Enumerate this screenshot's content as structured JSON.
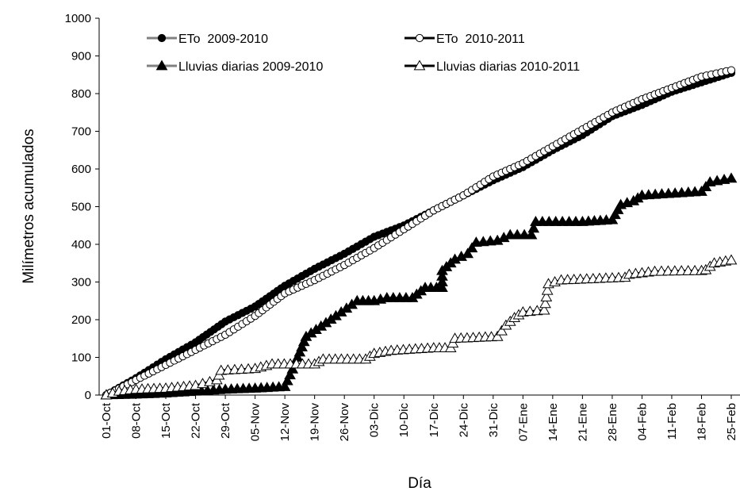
{
  "chart_data": {
    "type": "line",
    "title": "",
    "xlabel": "Día",
    "ylabel": "Milímetros acumulados",
    "ylim": [
      0,
      1000
    ],
    "yticks": [
      0,
      100,
      200,
      300,
      400,
      500,
      600,
      700,
      800,
      900,
      1000
    ],
    "xlim": [
      "01-Oct",
      "25-Feb"
    ],
    "xtick_labels": [
      "01-Oct",
      "08-Oct",
      "15-Oct",
      "22-Oct",
      "29-Oct",
      "05-Nov",
      "12-Nov",
      "19-Nov",
      "26-Nov",
      "03-Dic",
      "10-Dic",
      "17-Dic",
      "24-Dic",
      "31-Dic",
      "07-Ene",
      "14-Ene",
      "21-Ene",
      "28-Ene",
      "04-Feb",
      "11-Feb",
      "18-Feb",
      "25-Feb"
    ],
    "grid": false,
    "legend_position": "top-left",
    "series": [
      {
        "name": "ETo  2009-2010",
        "marker": "filled-circle",
        "line_color": "#808080",
        "marker_color": "#000000",
        "points": [
          [
            "01-Oct",
            0
          ],
          [
            "08-Oct",
            45
          ],
          [
            "15-Oct",
            95
          ],
          [
            "22-Oct",
            140
          ],
          [
            "29-Oct",
            195
          ],
          [
            "05-Nov",
            235
          ],
          [
            "12-Nov",
            290
          ],
          [
            "19-Nov",
            335
          ],
          [
            "26-Nov",
            375
          ],
          [
            "03-Dic",
            420
          ],
          [
            "10-Dic",
            450
          ],
          [
            "17-Dic",
            490
          ],
          [
            "24-Dic",
            530
          ],
          [
            "31-Dic",
            570
          ],
          [
            "07-Ene",
            605
          ],
          [
            "14-Ene",
            650
          ],
          [
            "21-Ene",
            690
          ],
          [
            "28-Ene",
            740
          ],
          [
            "04-Feb",
            770
          ],
          [
            "11-Feb",
            805
          ],
          [
            "18-Feb",
            830
          ],
          [
            "25-Feb",
            855
          ]
        ]
      },
      {
        "name": "ETo  2010-2011",
        "marker": "open-circle",
        "line_color": "#000000",
        "marker_color": "#ffffff",
        "points": [
          [
            "01-Oct",
            0
          ],
          [
            "08-Oct",
            40
          ],
          [
            "15-Oct",
            80
          ],
          [
            "22-Oct",
            120
          ],
          [
            "29-Oct",
            160
          ],
          [
            "05-Nov",
            210
          ],
          [
            "12-Nov",
            270
          ],
          [
            "19-Nov",
            305
          ],
          [
            "26-Nov",
            345
          ],
          [
            "03-Dic",
            390
          ],
          [
            "10-Dic",
            440
          ],
          [
            "17-Dic",
            490
          ],
          [
            "24-Dic",
            530
          ],
          [
            "31-Dic",
            580
          ],
          [
            "07-Ene",
            615
          ],
          [
            "14-Ene",
            660
          ],
          [
            "21-Ene",
            705
          ],
          [
            "28-Ene",
            750
          ],
          [
            "04-Feb",
            785
          ],
          [
            "11-Feb",
            815
          ],
          [
            "18-Feb",
            845
          ],
          [
            "25-Feb",
            862
          ]
        ]
      },
      {
        "name": "Lluvias diarias 2009-2010",
        "marker": "filled-triangle",
        "line_color": "#808080",
        "marker_color": "#000000",
        "points": [
          [
            "01-Oct",
            0
          ],
          [
            "08-Oct",
            2
          ],
          [
            "15-Oct",
            5
          ],
          [
            "22-Oct",
            10
          ],
          [
            "29-Oct",
            15
          ],
          [
            "05-Nov",
            18
          ],
          [
            "12-Nov",
            22
          ],
          [
            "15-Nov",
            100
          ],
          [
            "17-Nov",
            155
          ],
          [
            "24-Nov",
            210
          ],
          [
            "29-Nov",
            250
          ],
          [
            "03-Dic",
            250
          ],
          [
            "06-Dic",
            258
          ],
          [
            "12-Dic",
            258
          ],
          [
            "15-Dic",
            285
          ],
          [
            "19-Dic",
            285
          ],
          [
            "19-Dic",
            330
          ],
          [
            "22-Dic",
            360
          ],
          [
            "25-Dic",
            375
          ],
          [
            "27-Dic",
            405
          ],
          [
            "01-Ene",
            410
          ],
          [
            "04-Ene",
            425
          ],
          [
            "09-Ene",
            425
          ],
          [
            "10-Ene",
            460
          ],
          [
            "21-Ene",
            460
          ],
          [
            "28-Ene",
            465
          ],
          [
            "30-Ene",
            505
          ],
          [
            "02-Feb",
            515
          ],
          [
            "04-Feb",
            530
          ],
          [
            "18-Feb",
            540
          ],
          [
            "20-Feb",
            565
          ],
          [
            "25-Feb",
            575
          ]
        ]
      },
      {
        "name": "Lluvias diarias 2010-2011",
        "marker": "open-triangle",
        "line_color": "#000000",
        "marker_color": "#ffffff",
        "points": [
          [
            "01-Oct",
            0
          ],
          [
            "04-Oct",
            10
          ],
          [
            "08-Oct",
            15
          ],
          [
            "15-Oct",
            18
          ],
          [
            "22-Oct",
            25
          ],
          [
            "27-Oct",
            40
          ],
          [
            "28-Oct",
            65
          ],
          [
            "05-Nov",
            70
          ],
          [
            "09-Nov",
            82
          ],
          [
            "19-Nov",
            82
          ],
          [
            "21-Nov",
            95
          ],
          [
            "01-Dic",
            95
          ],
          [
            "03-Dic",
            110
          ],
          [
            "07-Dic",
            118
          ],
          [
            "17-Dic",
            125
          ],
          [
            "21-Dic",
            125
          ],
          [
            "22-Dic",
            150
          ],
          [
            "01-Ene",
            155
          ],
          [
            "03-Ene",
            185
          ],
          [
            "05-Ene",
            205
          ],
          [
            "07-Ene",
            220
          ],
          [
            "12-Ene",
            225
          ],
          [
            "13-Ene",
            295
          ],
          [
            "16-Ene",
            305
          ],
          [
            "31-Ene",
            312
          ],
          [
            "01-Feb",
            320
          ],
          [
            "07-Feb",
            328
          ],
          [
            "18-Feb",
            330
          ],
          [
            "19-Feb",
            332
          ],
          [
            "21-Feb",
            350
          ],
          [
            "25-Feb",
            358
          ]
        ]
      }
    ]
  }
}
